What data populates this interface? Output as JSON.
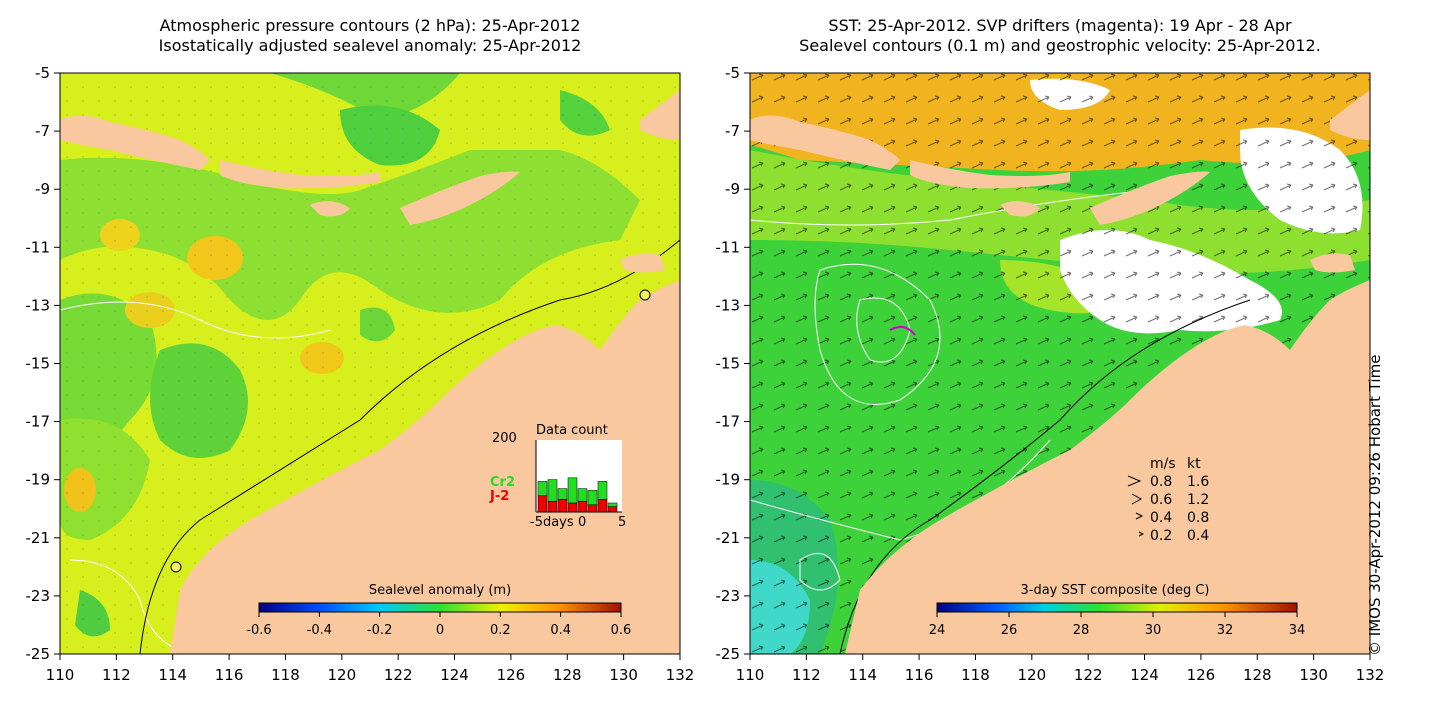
{
  "left_panel": {
    "title_line1": "Atmospheric pressure contours (2 hPa): 25-Apr-2012",
    "title_line2": "Isostatically adjusted sealevel anomaly: 25-Apr-2012",
    "colorbar_label": "Sealevel anomaly (m)",
    "colorbar_ticks": [
      "-0.6",
      "-0.4",
      "-0.2",
      "0",
      "0.2",
      "0.4",
      "0.6"
    ],
    "inset": {
      "title": "Data count",
      "ymax_label": "200",
      "xlabels": [
        "-5days",
        "0",
        "5"
      ],
      "series": [
        {
          "name": "Cr2",
          "color": "#22dd22"
        },
        {
          "name": "J-2",
          "color": "#ee0000"
        }
      ],
      "bars_j2": [
        45,
        30,
        35,
        25,
        30,
        20,
        35,
        15
      ],
      "bars_cr2": [
        40,
        60,
        30,
        70,
        35,
        40,
        50,
        10
      ]
    }
  },
  "right_panel": {
    "title_line1": "SST: 25-Apr-2012. SVP drifters (magenta): 19 Apr - 28 Apr",
    "title_line2": "Sealevel contours (0.1 m) and geostrophic velocity: 25-Apr-2012.",
    "colorbar_label": "3-day SST composite (deg C)",
    "colorbar_ticks": [
      "24",
      "26",
      "28",
      "30",
      "32",
      "34"
    ],
    "velocity_legend": {
      "header_ms": "m/s",
      "header_kt": "kt",
      "rows": [
        {
          "ms": "0.8",
          "kt": "1.6"
        },
        {
          "ms": "0.6",
          "kt": "1.2"
        },
        {
          "ms": "0.4",
          "kt": "0.8"
        },
        {
          "ms": "0.2",
          "kt": "0.4"
        }
      ]
    }
  },
  "axes": {
    "lat_labels": [
      "-5",
      "-7",
      "-9",
      "-11",
      "-13",
      "-15",
      "-17",
      "-19",
      "-21",
      "-23",
      "-25"
    ],
    "lon_labels": [
      "110",
      "112",
      "114",
      "116",
      "118",
      "120",
      "122",
      "124",
      "126",
      "128",
      "130",
      "132"
    ]
  },
  "credit": "© IMOS 30-Apr-2012 09:26 Hobart Time",
  "colors": {
    "land": "#f9c89f",
    "sla_base": "#d6f01a",
    "sst_base": "#3fd23c",
    "sst_warm": "#f2b41e"
  }
}
